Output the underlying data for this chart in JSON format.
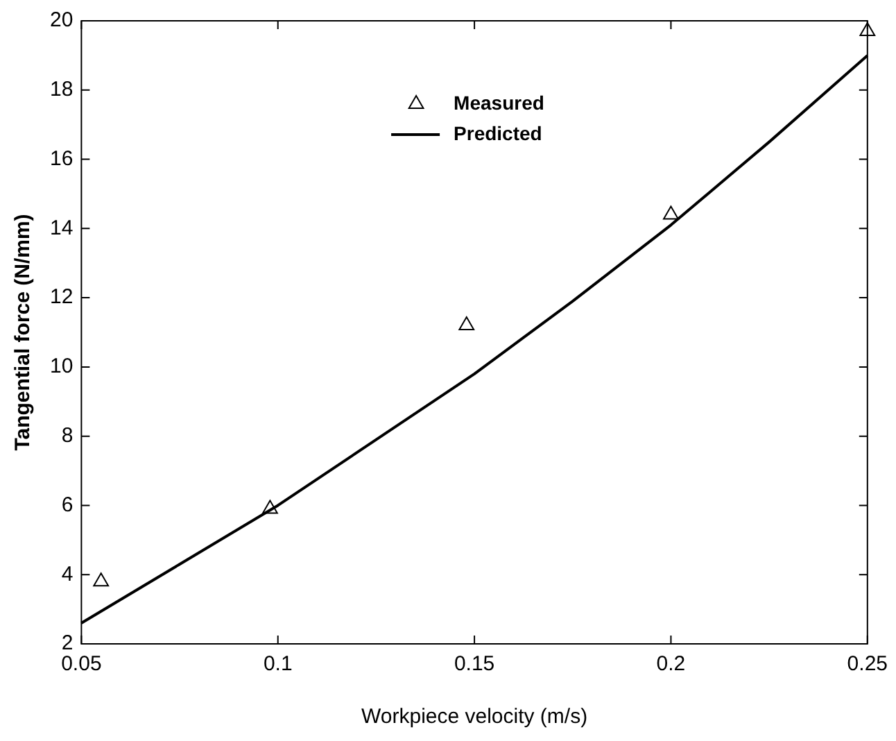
{
  "chart_data": {
    "type": "scatter",
    "xlabel": "Workpiece velocity (m/s)",
    "ylabel": "Tangential force (N/mm)",
    "xlim": [
      0.05,
      0.25
    ],
    "xticks": [
      {
        "value": 0.05,
        "label": "0.05"
      },
      {
        "value": 0.1,
        "label": "0.1"
      },
      {
        "value": 0.15,
        "label": "0.15"
      },
      {
        "value": 0.2,
        "label": "0.2"
      },
      {
        "value": 0.25,
        "label": "0.25"
      }
    ],
    "ylim": [
      2,
      20
    ],
    "yticks": [
      2,
      4,
      6,
      8,
      10,
      12,
      14,
      16,
      18,
      20
    ],
    "grid": false,
    "legend": "top",
    "series": [
      {
        "name": "Measured",
        "marker": "triangle",
        "color": "#000000",
        "x": [
          0.055,
          0.098,
          0.148,
          0.2,
          0.25
        ],
        "values": [
          3.8,
          5.9,
          11.2,
          14.4,
          19.7
        ]
      },
      {
        "name": "Predicted",
        "type": "line",
        "marker": "none",
        "line_style": "solid",
        "color": "#000000",
        "x": [
          0.05,
          0.075,
          0.1,
          0.125,
          0.15,
          0.175,
          0.2,
          0.225,
          0.25
        ],
        "values": [
          2.6,
          4.3,
          6.0,
          7.9,
          9.8,
          11.9,
          14.1,
          16.5,
          19.0
        ]
      }
    ]
  }
}
